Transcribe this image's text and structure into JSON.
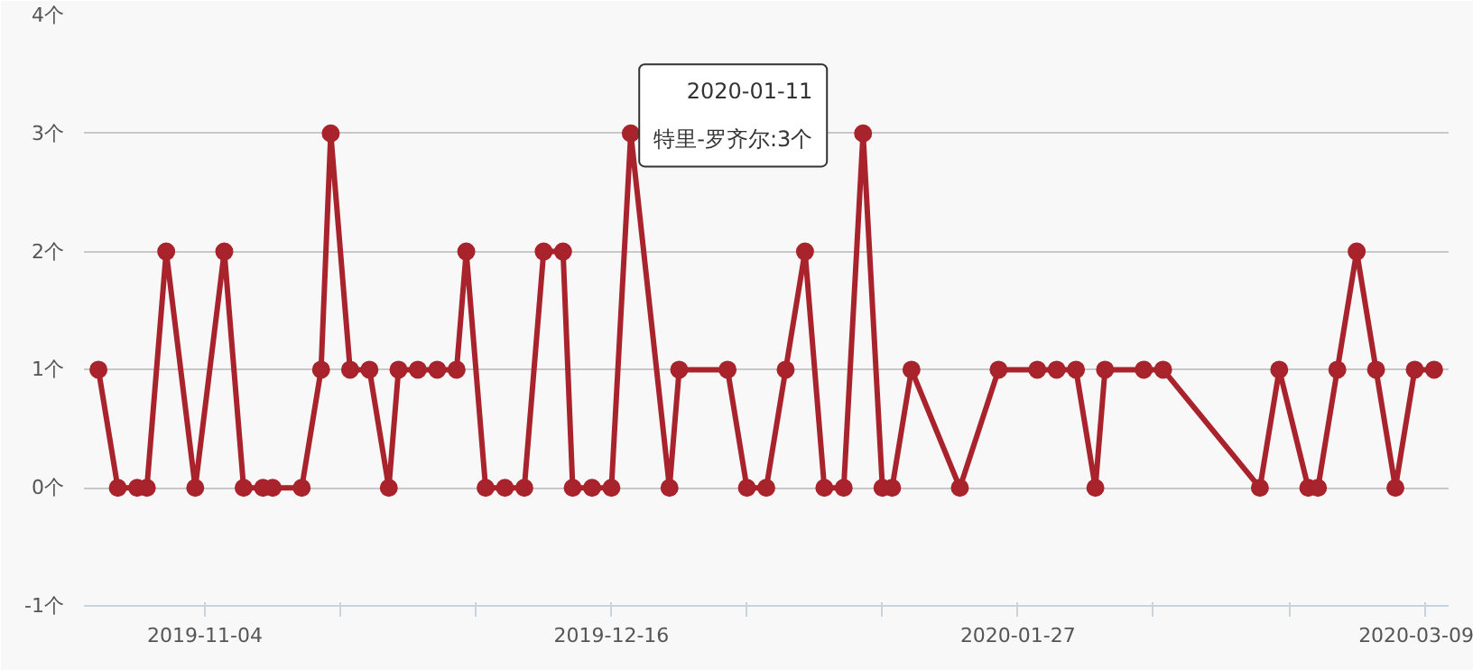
{
  "chart_data": {
    "type": "line",
    "x": [
      "2019-10-24",
      "2019-10-26",
      "2019-10-28",
      "2019-10-29",
      "2019-10-31",
      "2019-11-03",
      "2019-11-06",
      "2019-11-08",
      "2019-11-10",
      "2019-11-11",
      "2019-11-14",
      "2019-11-16",
      "2019-11-17",
      "2019-11-19",
      "2019-11-21",
      "2019-11-23",
      "2019-11-24",
      "2019-11-26",
      "2019-11-28",
      "2019-11-30",
      "2019-12-01",
      "2019-12-03",
      "2019-12-05",
      "2019-12-07",
      "2019-12-09",
      "2019-12-11",
      "2019-12-12",
      "2019-12-14",
      "2019-12-16",
      "2019-12-18",
      "2019-12-22",
      "2019-12-23",
      "2019-12-28",
      "2019-12-30",
      "2020-01-01",
      "2020-01-03",
      "2020-01-05",
      "2020-01-07",
      "2020-01-09",
      "2020-01-11",
      "2020-01-13",
      "2020-01-14",
      "2020-01-16",
      "2020-01-21",
      "2020-01-25",
      "2020-01-29",
      "2020-01-31",
      "2020-02-02",
      "2020-02-04",
      "2020-02-05",
      "2020-02-09",
      "2020-02-11",
      "2020-02-21",
      "2020-02-23",
      "2020-02-26",
      "2020-02-27",
      "2020-02-29",
      "2020-03-02",
      "2020-03-04",
      "2020-03-06",
      "2020-03-08",
      "2020-03-10"
    ],
    "series": [
      {
        "color": "#a8232b",
        "values": [
          1,
          0,
          0,
          0,
          2,
          0,
          2,
          0,
          0,
          0,
          0,
          1,
          3,
          1,
          1,
          0,
          1,
          1,
          1,
          1,
          2,
          0,
          0,
          0,
          2,
          2,
          0,
          0,
          0,
          3,
          0,
          1,
          1,
          0,
          0,
          1,
          2,
          0,
          0,
          3,
          0,
          0,
          1,
          0,
          1,
          1,
          1,
          1,
          0,
          1,
          1,
          1,
          0,
          1,
          0,
          0,
          1,
          2,
          1,
          0,
          1,
          1
        ]
      }
    ],
    "xlim": [
      "2019-10-22T12:00",
      "2020-03-11T12:00"
    ],
    "xticks": [
      {
        "value": "2019-11-04",
        "label": "2019-11-04"
      },
      {
        "value": "2019-11-18",
        "label": null
      },
      {
        "value": "2019-12-02",
        "label": null
      },
      {
        "value": "2019-12-16",
        "label": "2019-12-16"
      },
      {
        "value": "2019-12-30",
        "label": null
      },
      {
        "value": "2020-01-13",
        "label": null
      },
      {
        "value": "2020-01-27",
        "label": "2020-01-27"
      },
      {
        "value": "2020-02-10",
        "label": null
      },
      {
        "value": "2020-02-24",
        "label": null
      },
      {
        "value": "2020-03-09",
        "label": "2020-03-09"
      }
    ],
    "ylim": [
      -1,
      4
    ],
    "yticks": [
      {
        "value": -1,
        "label": "-1个"
      },
      {
        "value": 0,
        "label": "0个"
      },
      {
        "value": 1,
        "label": "1个"
      },
      {
        "value": 2,
        "label": "2个"
      },
      {
        "value": 3,
        "label": "3个"
      },
      {
        "value": 4,
        "label": "4个"
      }
    ],
    "grid": "y",
    "marker": "circle",
    "line_style": "solid",
    "annotations": [
      {
        "text": "2020-01-11\n特里-罗齐尔:3个",
        "x": "2020-01-11",
        "y": 3
      }
    ]
  }
}
